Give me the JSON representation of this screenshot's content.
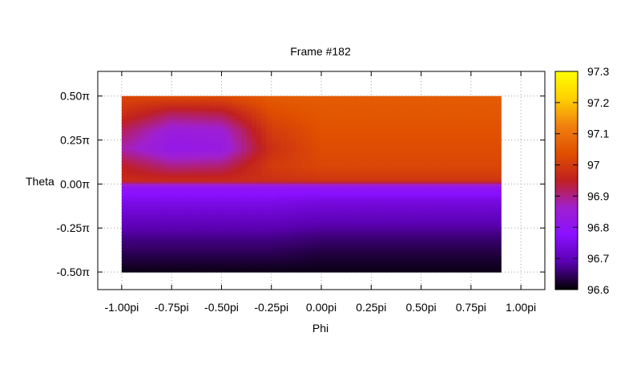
{
  "chart_data": {
    "type": "heatmap",
    "title": "Frame #182",
    "xlabel": "Phi",
    "ylabel": "Theta",
    "xlim": [
      -1.12,
      1.12
    ],
    "ylim": [
      -0.6,
      0.64
    ],
    "x_ticks": [
      {
        "value": -1.0,
        "label": "-1.00pi"
      },
      {
        "value": -0.75,
        "label": "-0.75pi"
      },
      {
        "value": -0.5,
        "label": "-0.50pi"
      },
      {
        "value": -0.25,
        "label": "-0.25pi"
      },
      {
        "value": 0.0,
        "label": "0.00pi"
      },
      {
        "value": 0.25,
        "label": "0.25pi"
      },
      {
        "value": 0.5,
        "label": "0.50pi"
      },
      {
        "value": 0.75,
        "label": "0.75pi"
      },
      {
        "value": 1.0,
        "label": "1.00pi"
      }
    ],
    "y_ticks": [
      {
        "value": 0.5,
        "label": "0.50π"
      },
      {
        "value": 0.25,
        "label": "0.25π"
      },
      {
        "value": 0.0,
        "label": "0.00π"
      },
      {
        "value": -0.25,
        "label": "-0.25π"
      },
      {
        "value": -0.5,
        "label": "-0.50π"
      }
    ],
    "colorbar": {
      "range": [
        96.6,
        97.3
      ],
      "ticks": [
        "97.3",
        "97.2",
        "97.1",
        "97",
        "96.9",
        "96.8",
        "96.7",
        "96.6"
      ],
      "palette": [
        "#000000",
        "#5a00b0",
        "#8a10ff",
        "#a020d0",
        "#c02020",
        "#e05000",
        "#f08010",
        "#ffd000",
        "#ffff00"
      ]
    },
    "grid": true,
    "data_extent": {
      "phi": [
        -1.0,
        0.9
      ],
      "theta": [
        -0.5,
        0.5
      ]
    },
    "z": {
      "theta": [
        0.5,
        0.4,
        0.3,
        0.2,
        0.1,
        0.02,
        -0.02,
        -0.1,
        -0.2,
        -0.3,
        -0.4,
        -0.5
      ],
      "phi": [
        -1.0,
        -0.75,
        -0.5,
        -0.25,
        0.0,
        0.25,
        0.5,
        0.75,
        0.9
      ],
      "values": [
        [
          97.02,
          97.03,
          97.03,
          97.06,
          97.06,
          97.06,
          97.06,
          97.06,
          97.06
        ],
        [
          96.98,
          96.92,
          96.93,
          97.03,
          97.05,
          97.05,
          97.05,
          97.05,
          97.05
        ],
        [
          96.92,
          96.84,
          96.85,
          97.0,
          97.04,
          97.04,
          97.04,
          97.04,
          97.04
        ],
        [
          96.88,
          96.82,
          96.83,
          96.98,
          97.03,
          97.03,
          97.03,
          97.03,
          97.03
        ],
        [
          96.95,
          96.9,
          96.91,
          97.0,
          97.02,
          97.02,
          97.02,
          97.02,
          97.02
        ],
        [
          96.97,
          96.97,
          96.97,
          96.98,
          96.99,
          96.99,
          96.99,
          96.99,
          96.99
        ],
        [
          96.8,
          96.8,
          96.8,
          96.8,
          96.8,
          96.8,
          96.8,
          96.8,
          96.8
        ],
        [
          96.75,
          96.75,
          96.75,
          96.75,
          96.74,
          96.74,
          96.74,
          96.74,
          96.74
        ],
        [
          96.71,
          96.71,
          96.71,
          96.71,
          96.7,
          96.7,
          96.7,
          96.7,
          96.7
        ],
        [
          96.67,
          96.67,
          96.67,
          96.67,
          96.66,
          96.66,
          96.66,
          96.66,
          96.66
        ],
        [
          96.64,
          96.64,
          96.64,
          96.64,
          96.63,
          96.63,
          96.63,
          96.63,
          96.63
        ],
        [
          96.61,
          96.61,
          96.61,
          96.61,
          96.61,
          96.61,
          96.61,
          96.61,
          96.61
        ]
      ]
    }
  }
}
